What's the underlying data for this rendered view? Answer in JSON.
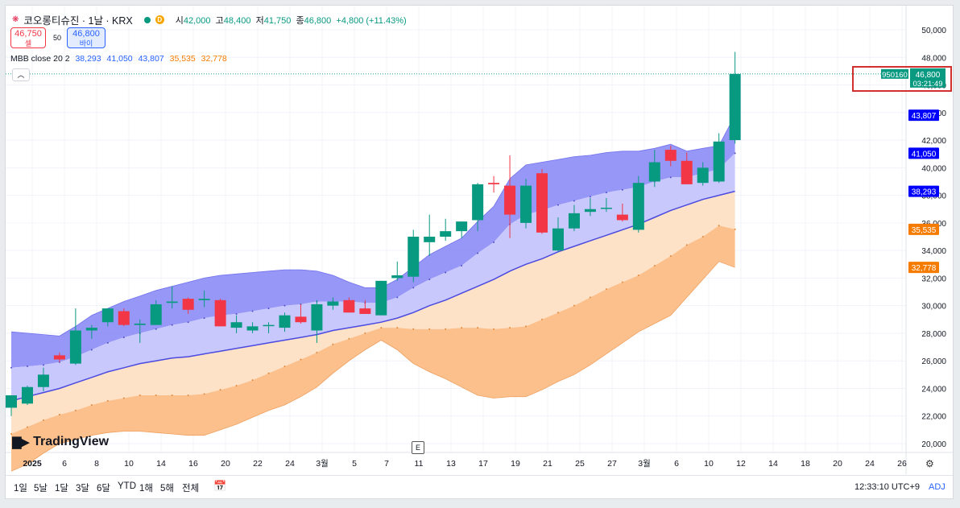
{
  "header": {
    "symbol_icon": "krx-flag-icon",
    "title": "코오롱티슈진 · 1날 · KRX",
    "ohlc": {
      "open_label": "시",
      "open": "42,000",
      "high_label": "고",
      "high": "48,400",
      "low_label": "저",
      "low": "41,750",
      "close_label": "종",
      "close": "46,800",
      "change": "+4,800 (+11.43%)"
    },
    "status_badge": "D"
  },
  "trade": {
    "sell_price": "46,750",
    "sell_label": "셀",
    "spread": "50",
    "buy_price": "46,800",
    "buy_label": "바이"
  },
  "indicator": {
    "name": "MBB close 20 2",
    "v1": "38,293",
    "v2": "41,050",
    "v3": "43,807",
    "v4": "35,535",
    "v5": "32,778"
  },
  "collapse_icon": "chevron-up-icon",
  "colors": {
    "up": "#089981",
    "down": "#f23645",
    "blue": "#2962ff",
    "orange": "#f57c00"
  },
  "price_axis": {
    "ticks": [
      "50,000",
      "48,000",
      "46,000",
      "44,000",
      "42,000",
      "40,000",
      "38,000",
      "36,000",
      "34,000",
      "32,000",
      "30,000",
      "28,000",
      "26,000",
      "24,000",
      "22,000",
      "20,000"
    ],
    "labels": [
      {
        "text": "43,807",
        "value": 43807,
        "color": "#0000ff"
      },
      {
        "text": "41,050",
        "value": 41050,
        "color": "#0000ff"
      },
      {
        "text": "38,293",
        "value": 38293,
        "color": "#0000ff"
      },
      {
        "text": "35,535",
        "value": 35535,
        "color": "#f57c00"
      },
      {
        "text": "32,778",
        "value": 32778,
        "color": "#f57c00"
      }
    ],
    "last_price": {
      "code": "950160",
      "price": "46,800",
      "countdown": "03:21:49",
      "value": 46800
    }
  },
  "time_axis": [
    "2025",
    "6",
    "8",
    "10",
    "14",
    "16",
    "20",
    "22",
    "24",
    "3월",
    "5",
    "7",
    "11",
    "13",
    "17",
    "19",
    "21",
    "25",
    "27",
    "3월",
    "6",
    "10",
    "12",
    "14",
    "18",
    "20",
    "24",
    "26"
  ],
  "bottom_bar": {
    "timeframes": [
      "1일",
      "5날",
      "1달",
      "3달",
      "6달",
      "YTD",
      "1해",
      "5해",
      "전체"
    ],
    "calendar_icon": "calendar-range-icon",
    "time": "12:33:10 UTC+9",
    "adj": "ADJ"
  },
  "logo": {
    "name": "TradingView"
  },
  "events_badge": "E",
  "settings_icon": "gear-icon",
  "chart_data": {
    "type": "candlestick",
    "title": "코오롱티슈진 · 1날 · KRX",
    "ylim": [
      19500,
      51000
    ],
    "candles": [
      {
        "o": 22600,
        "h": 23500,
        "l": 22000,
        "c": 23500
      },
      {
        "o": 22900,
        "h": 24200,
        "l": 22800,
        "c": 24100
      },
      {
        "o": 24100,
        "h": 25500,
        "l": 23800,
        "c": 25000
      },
      {
        "o": 26400,
        "h": 26600,
        "l": 25900,
        "c": 26100
      },
      {
        "o": 25800,
        "h": 29800,
        "l": 25700,
        "c": 28200
      },
      {
        "o": 28200,
        "h": 28600,
        "l": 27600,
        "c": 28400
      },
      {
        "o": 28800,
        "h": 29800,
        "l": 28500,
        "c": 29800
      },
      {
        "o": 29600,
        "h": 29800,
        "l": 28500,
        "c": 28600
      },
      {
        "o": 28600,
        "h": 29000,
        "l": 27300,
        "c": 28700
      },
      {
        "o": 28600,
        "h": 30400,
        "l": 28600,
        "c": 30100
      },
      {
        "o": 30200,
        "h": 31400,
        "l": 29800,
        "c": 30300
      },
      {
        "o": 30500,
        "h": 30600,
        "l": 29400,
        "c": 29700
      },
      {
        "o": 30400,
        "h": 31100,
        "l": 29900,
        "c": 30500
      },
      {
        "o": 30400,
        "h": 30500,
        "l": 28500,
        "c": 28500
      },
      {
        "o": 28400,
        "h": 29300,
        "l": 28000,
        "c": 28800
      },
      {
        "o": 28200,
        "h": 28800,
        "l": 28000,
        "c": 28500
      },
      {
        "o": 28600,
        "h": 28800,
        "l": 28000,
        "c": 28600
      },
      {
        "o": 28400,
        "h": 29500,
        "l": 28100,
        "c": 29300
      },
      {
        "o": 29200,
        "h": 30100,
        "l": 28700,
        "c": 28800
      },
      {
        "o": 28200,
        "h": 30400,
        "l": 27300,
        "c": 30100
      },
      {
        "o": 30000,
        "h": 30600,
        "l": 29700,
        "c": 30300
      },
      {
        "o": 30400,
        "h": 30600,
        "l": 29500,
        "c": 29500
      },
      {
        "o": 29800,
        "h": 30400,
        "l": 29400,
        "c": 29400
      },
      {
        "o": 29300,
        "h": 31800,
        "l": 29300,
        "c": 31800
      },
      {
        "o": 32000,
        "h": 33200,
        "l": 31800,
        "c": 32200
      },
      {
        "o": 32100,
        "h": 35500,
        "l": 31700,
        "c": 35000
      },
      {
        "o": 34600,
        "h": 36600,
        "l": 33600,
        "c": 35000
      },
      {
        "o": 35000,
        "h": 36300,
        "l": 34700,
        "c": 35400
      },
      {
        "o": 35400,
        "h": 35900,
        "l": 34900,
        "c": 36100
      },
      {
        "o": 36200,
        "h": 38900,
        "l": 35400,
        "c": 38800
      },
      {
        "o": 38900,
        "h": 39400,
        "l": 38200,
        "c": 38800
      },
      {
        "o": 38700,
        "h": 40900,
        "l": 34900,
        "c": 36600
      },
      {
        "o": 36000,
        "h": 39200,
        "l": 35600,
        "c": 38700
      },
      {
        "o": 39600,
        "h": 39900,
        "l": 35200,
        "c": 35300
      },
      {
        "o": 34000,
        "h": 36400,
        "l": 33900,
        "c": 35600
      },
      {
        "o": 35600,
        "h": 37300,
        "l": 35400,
        "c": 36700
      },
      {
        "o": 36800,
        "h": 37800,
        "l": 36500,
        "c": 37000
      },
      {
        "o": 37100,
        "h": 37800,
        "l": 36800,
        "c": 37100
      },
      {
        "o": 36600,
        "h": 37400,
        "l": 36100,
        "c": 36200
      },
      {
        "o": 35500,
        "h": 39400,
        "l": 35300,
        "c": 38900
      },
      {
        "o": 39000,
        "h": 41300,
        "l": 38600,
        "c": 40400
      },
      {
        "o": 41300,
        "h": 41600,
        "l": 40100,
        "c": 40500
      },
      {
        "o": 40500,
        "h": 41100,
        "l": 38800,
        "c": 38800
      },
      {
        "o": 38900,
        "h": 40400,
        "l": 38700,
        "c": 40000
      },
      {
        "o": 39000,
        "h": 42500,
        "l": 38900,
        "c": 41900
      },
      {
        "o": 42000,
        "h": 48400,
        "l": 41750,
        "c": 46800
      }
    ],
    "series": [
      {
        "name": "upper",
        "values": [
          28100,
          28000,
          27900,
          27800,
          28500,
          29300,
          29800,
          30300,
          30700,
          31100,
          31400,
          31700,
          32000,
          32200,
          32300,
          32400,
          32500,
          32600,
          32600,
          32500,
          32200,
          31700,
          31300,
          31300,
          31900,
          32800,
          33700,
          34300,
          34900,
          36100,
          37200,
          39200,
          40200,
          40400,
          40600,
          40800,
          40900,
          41100,
          41200,
          41200,
          41400,
          41700,
          41200,
          41400,
          41600,
          43807
        ]
      },
      {
        "name": "middle",
        "values": [
          23100,
          23400,
          23700,
          24000,
          24400,
          24800,
          25200,
          25500,
          25800,
          26000,
          26200,
          26300,
          26500,
          26700,
          26900,
          27100,
          27300,
          27500,
          27700,
          27900,
          28200,
          28400,
          28600,
          28800,
          29100,
          29500,
          30000,
          30400,
          30900,
          31400,
          31900,
          32500,
          33000,
          33400,
          33900,
          34300,
          34700,
          35100,
          35500,
          35900,
          36400,
          36900,
          37300,
          37700,
          38000,
          38293
        ]
      },
      {
        "name": "upper_inner",
        "values": [
          25500,
          25600,
          25700,
          25900,
          26300,
          26800,
          27300,
          27700,
          28000,
          28300,
          28600,
          28800,
          29100,
          29300,
          29400,
          29600,
          29800,
          30000,
          30100,
          30300,
          30300,
          30300,
          30200,
          30200,
          30600,
          31300,
          31900,
          32400,
          32900,
          33800,
          34600,
          35900,
          36600,
          36900,
          37300,
          37600,
          37900,
          38200,
          38400,
          38600,
          39000,
          39300,
          39300,
          39600,
          39900,
          41050
        ]
      },
      {
        "name": "lower_inner",
        "values": [
          20700,
          21200,
          21700,
          22100,
          22400,
          22800,
          23100,
          23300,
          23500,
          23500,
          23500,
          23500,
          23600,
          23900,
          24200,
          24600,
          25100,
          25600,
          26100,
          26600,
          27200,
          27600,
          28000,
          28400,
          28400,
          28300,
          28300,
          28300,
          28400,
          28400,
          28300,
          28400,
          28500,
          29000,
          29500,
          30000,
          30600,
          31200,
          31700,
          32200,
          32900,
          33600,
          34400,
          35000,
          35800,
          35535
        ]
      },
      {
        "name": "lower",
        "values": [
          18000,
          18500,
          19300,
          20000,
          20300,
          20600,
          20800,
          20900,
          20900,
          20800,
          20700,
          20600,
          20600,
          21000,
          21400,
          21900,
          22400,
          22800,
          23400,
          24100,
          25100,
          26000,
          26800,
          27500,
          26800,
          25800,
          25200,
          24700,
          24100,
          23500,
          23300,
          23400,
          23400,
          23900,
          24500,
          25000,
          25700,
          26500,
          27300,
          28100,
          28700,
          29300,
          30600,
          31900,
          33200,
          32778
        ]
      }
    ]
  }
}
